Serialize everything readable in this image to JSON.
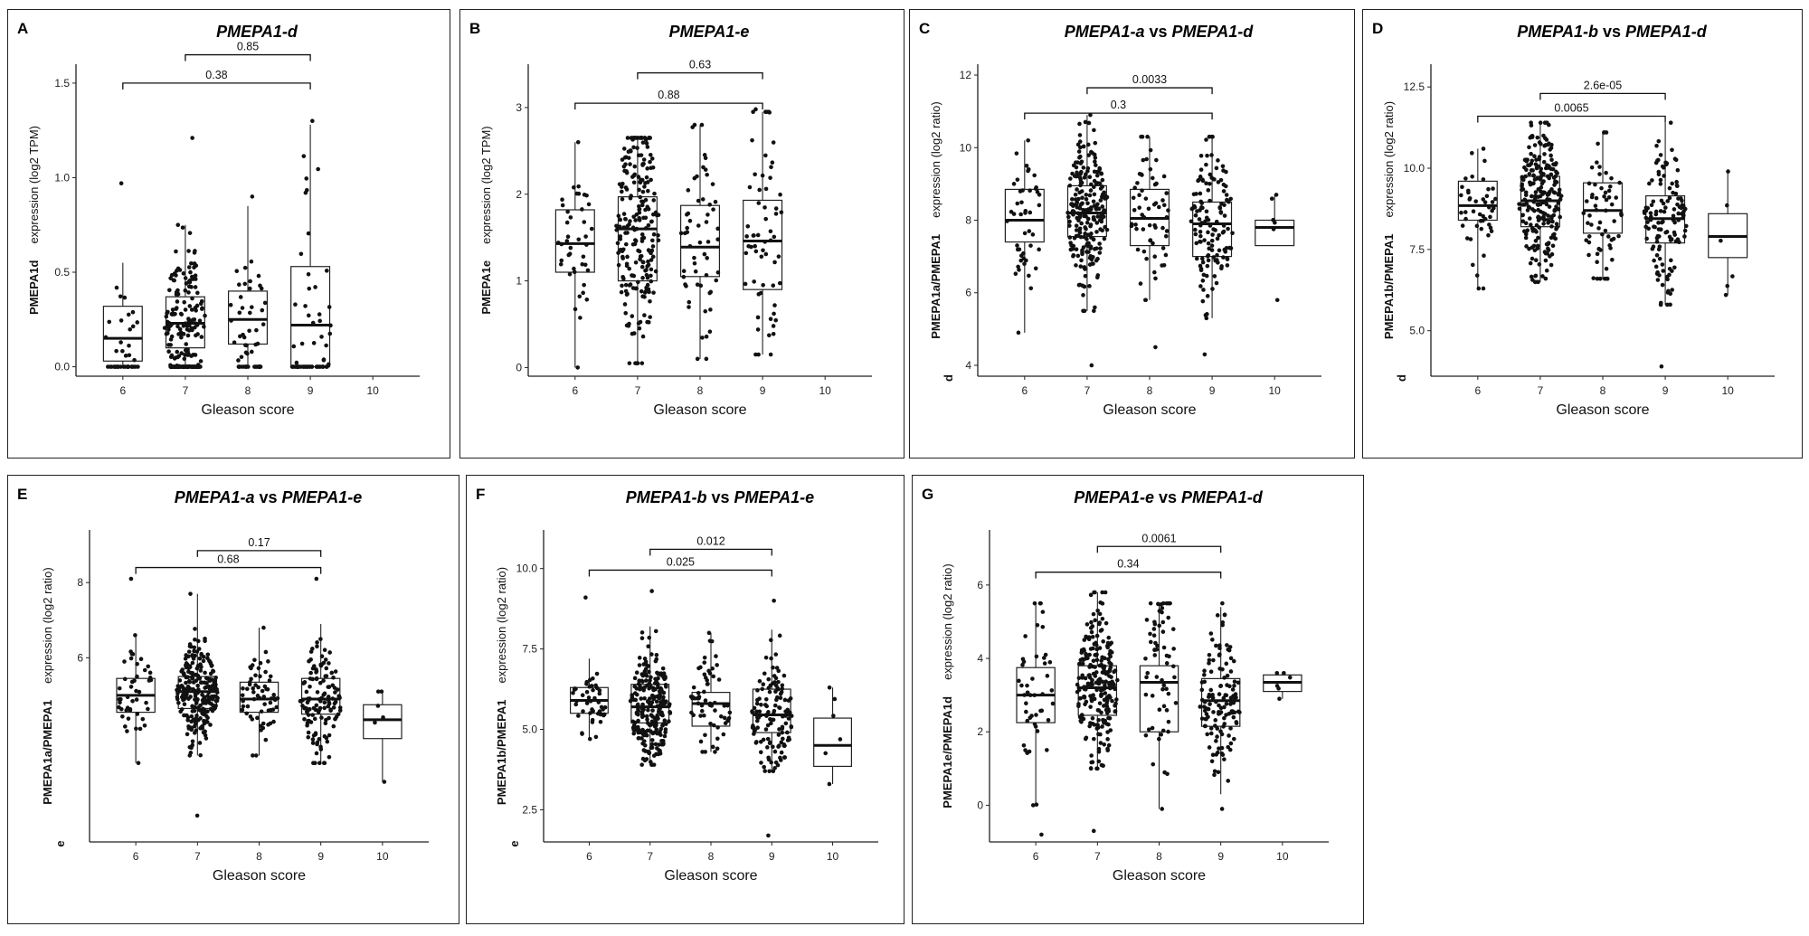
{
  "chart_data": [
    {
      "panel": "A",
      "type": "box",
      "title": "PMEPA1-d",
      "title_parts": [
        {
          "text": "PMEPA1-d",
          "italic": true
        }
      ],
      "ylabel_left": "PMEPA1d",
      "ylabel_right": "expression (log2 TPM)",
      "ylabel_sub": "",
      "xlabel": "Gleason score",
      "categories": [
        "6",
        "7",
        "8",
        "9",
        "10"
      ],
      "ylim": [
        -0.05,
        1.6
      ],
      "yticks": [
        0.0,
        0.5,
        1.0,
        1.5
      ],
      "yticklabels": [
        "0.0",
        "0.5",
        "1.0",
        "1.5"
      ],
      "boxes": [
        {
          "x": "6",
          "q1": 0.03,
          "median": 0.15,
          "q3": 0.32,
          "lo": 0.0,
          "hi": 0.55,
          "n": 40,
          "ptmin": 0.0,
          "ptmax": 0.97
        },
        {
          "x": "7",
          "q1": 0.1,
          "median": 0.23,
          "q3": 0.37,
          "lo": 0.0,
          "hi": 0.75,
          "n": 230,
          "ptmin": 0.0,
          "ptmax": 1.21
        },
        {
          "x": "8",
          "q1": 0.12,
          "median": 0.25,
          "q3": 0.4,
          "lo": 0.0,
          "hi": 0.85,
          "n": 55,
          "ptmin": 0.0,
          "ptmax": 0.9
        },
        {
          "x": "9",
          "q1": 0.0,
          "median": 0.22,
          "q3": 0.53,
          "lo": 0.0,
          "hi": 1.28,
          "n": 60,
          "ptmin": 0.0,
          "ptmax": 1.3
        }
      ],
      "pvalues": [
        {
          "from": "7",
          "to": "9",
          "y": 1.65,
          "label": "0.85"
        },
        {
          "from": "6",
          "to": "9",
          "y": 1.5,
          "label": "0.38"
        }
      ]
    },
    {
      "panel": "B",
      "type": "box",
      "title": "PMEPA1-e",
      "title_parts": [
        {
          "text": "PMEPA1-e",
          "italic": true
        }
      ],
      "ylabel_left": "PMEPA1e",
      "ylabel_right": "expression (log2 TPM)",
      "ylabel_sub": "",
      "xlabel": "Gleason score",
      "categories": [
        "6",
        "7",
        "8",
        "9",
        "10"
      ],
      "ylim": [
        -0.1,
        3.5
      ],
      "yticks": [
        0,
        1,
        2,
        3
      ],
      "yticklabels": [
        "0",
        "1",
        "2",
        "3"
      ],
      "boxes": [
        {
          "x": "6",
          "q1": 1.1,
          "median": 1.43,
          "q3": 1.82,
          "lo": 0.0,
          "hi": 2.6,
          "n": 40,
          "ptmin": 0.0,
          "ptmax": 2.6
        },
        {
          "x": "7",
          "q1": 1.0,
          "median": 1.6,
          "q3": 1.97,
          "lo": 0.05,
          "hi": 2.65,
          "n": 230,
          "ptmin": 0.05,
          "ptmax": 2.65
        },
        {
          "x": "8",
          "q1": 1.05,
          "median": 1.39,
          "q3": 1.87,
          "lo": 0.1,
          "hi": 2.8,
          "n": 55,
          "ptmin": 0.1,
          "ptmax": 2.8
        },
        {
          "x": "9",
          "q1": 0.9,
          "median": 1.46,
          "q3": 1.93,
          "lo": 0.15,
          "hi": 2.95,
          "n": 60,
          "ptmin": 0.15,
          "ptmax": 2.98
        }
      ],
      "pvalues": [
        {
          "from": "7",
          "to": "9",
          "y": 3.4,
          "label": "0.63"
        },
        {
          "from": "6",
          "to": "9",
          "y": 3.05,
          "label": "0.88"
        }
      ]
    },
    {
      "panel": "C",
      "type": "box",
      "title": "PMEPA1-a vs PMEPA1-d",
      "title_parts": [
        {
          "text": "PMEPA1-a",
          "italic": true
        },
        {
          "text": " vs ",
          "italic": false
        },
        {
          "text": "PMEPA1-d",
          "italic": true
        }
      ],
      "ylabel_left": "PMEPA1a/PMEPA1",
      "ylabel_right": "expression (log2 ratio)",
      "ylabel_sub": "d",
      "xlabel": "Gleason score",
      "categories": [
        "6",
        "7",
        "8",
        "9",
        "10"
      ],
      "ylim": [
        3.7,
        12.3
      ],
      "yticks": [
        4,
        6,
        8,
        10,
        12
      ],
      "yticklabels": [
        "4",
        "6",
        "8",
        "10",
        "12"
      ],
      "boxes": [
        {
          "x": "6",
          "q1": 7.4,
          "median": 8.0,
          "q3": 8.85,
          "lo": 4.9,
          "hi": 10.2,
          "n": 45,
          "ptmin": 4.9,
          "ptmax": 10.2
        },
        {
          "x": "7",
          "q1": 7.55,
          "median": 8.2,
          "q3": 8.95,
          "lo": 5.5,
          "hi": 10.9,
          "n": 240,
          "ptmin": 4.0,
          "ptmax": 10.9
        },
        {
          "x": "8",
          "q1": 7.3,
          "median": 8.05,
          "q3": 8.85,
          "lo": 5.8,
          "hi": 10.3,
          "n": 60,
          "ptmin": 4.5,
          "ptmax": 10.3
        },
        {
          "x": "9",
          "q1": 7.0,
          "median": 7.9,
          "q3": 8.5,
          "lo": 5.3,
          "hi": 10.3,
          "n": 130,
          "ptmin": 4.3,
          "ptmax": 10.3
        },
        {
          "x": "10",
          "q1": 7.3,
          "median": 7.8,
          "q3": 8.0,
          "lo": 7.3,
          "hi": 8.7,
          "n": 4,
          "ptmin": 5.8,
          "ptmax": 8.7
        }
      ],
      "pvalues": [
        {
          "from": "7",
          "to": "9",
          "y": 11.65,
          "label": "0.0033"
        },
        {
          "from": "6",
          "to": "9",
          "y": 10.95,
          "label": "0.3"
        }
      ]
    },
    {
      "panel": "D",
      "type": "box",
      "title": "PMEPA1-b vs PMEPA1-d",
      "title_parts": [
        {
          "text": "PMEPA1-b",
          "italic": true
        },
        {
          "text": " vs ",
          "italic": false
        },
        {
          "text": "PMEPA1-d",
          "italic": true
        }
      ],
      "ylabel_left": "PMEPA1b/PMEPA1",
      "ylabel_right": "expression (log2 ratio)",
      "ylabel_sub": "d",
      "xlabel": "Gleason score",
      "categories": [
        "6",
        "7",
        "8",
        "9",
        "10"
      ],
      "ylim": [
        3.6,
        13.2
      ],
      "yticks": [
        5.0,
        7.5,
        10.0,
        12.5
      ],
      "yticklabels": [
        "5.0",
        "7.5",
        "10.0",
        "12.5"
      ],
      "boxes": [
        {
          "x": "6",
          "q1": 8.4,
          "median": 8.85,
          "q3": 9.6,
          "lo": 6.3,
          "hi": 10.6,
          "n": 45,
          "ptmin": 6.3,
          "ptmax": 10.6
        },
        {
          "x": "7",
          "q1": 8.2,
          "median": 9.0,
          "q3": 9.75,
          "lo": 6.5,
          "hi": 11.4,
          "n": 240,
          "ptmin": 6.5,
          "ptmax": 11.4
        },
        {
          "x": "8",
          "q1": 8.0,
          "median": 8.7,
          "q3": 9.55,
          "lo": 6.6,
          "hi": 11.1,
          "n": 60,
          "ptmin": 6.6,
          "ptmax": 11.1
        },
        {
          "x": "9",
          "q1": 7.7,
          "median": 8.45,
          "q3": 9.15,
          "lo": 5.8,
          "hi": 11.4,
          "n": 130,
          "ptmin": 3.9,
          "ptmax": 11.4
        },
        {
          "x": "10",
          "q1": 7.25,
          "median": 7.9,
          "q3": 8.6,
          "lo": 6.1,
          "hi": 9.9,
          "n": 4,
          "ptmin": 6.1,
          "ptmax": 9.9
        }
      ],
      "pvalues": [
        {
          "from": "7",
          "to": "9",
          "y": 12.3,
          "label": "2.6e-05"
        },
        {
          "from": "6",
          "to": "9",
          "y": 11.6,
          "label": "0.0065"
        }
      ]
    },
    {
      "panel": "E",
      "type": "box",
      "title": "PMEPA1-a vs PMEPA1-e",
      "title_parts": [
        {
          "text": "PMEPA1-a",
          "italic": true
        },
        {
          "text": " vs ",
          "italic": false
        },
        {
          "text": "PMEPA1-e",
          "italic": true
        }
      ],
      "ylabel_left": "PMEPA1a/PMEPA1",
      "ylabel_right": "expression (log2 ratio)",
      "ylabel_sub": "e",
      "xlabel": "Gleason score",
      "categories": [
        "6",
        "7",
        "8",
        "9",
        "10"
      ],
      "ylim": [
        1.1,
        9.4
      ],
      "yticks": [
        6,
        8
      ],
      "yticklabels": [
        "6",
        "8"
      ],
      "boxes": [
        {
          "x": "6",
          "q1": 4.55,
          "median": 5.0,
          "q3": 5.45,
          "lo": 3.2,
          "hi": 6.6,
          "n": 45,
          "ptmin": 3.2,
          "ptmax": 8.1
        },
        {
          "x": "7",
          "q1": 4.65,
          "median": 5.1,
          "q3": 5.5,
          "lo": 3.4,
          "hi": 7.7,
          "n": 240,
          "ptmin": 1.8,
          "ptmax": 7.7
        },
        {
          "x": "8",
          "q1": 4.55,
          "median": 4.9,
          "q3": 5.35,
          "lo": 3.4,
          "hi": 6.8,
          "n": 60,
          "ptmin": 3.4,
          "ptmax": 6.8
        },
        {
          "x": "9",
          "q1": 4.5,
          "median": 4.9,
          "q3": 5.45,
          "lo": 3.2,
          "hi": 6.9,
          "n": 130,
          "ptmin": 3.2,
          "ptmax": 8.1
        },
        {
          "x": "10",
          "q1": 3.85,
          "median": 4.35,
          "q3": 4.75,
          "lo": 2.7,
          "hi": 5.1,
          "n": 4,
          "ptmin": 2.7,
          "ptmax": 5.1
        }
      ],
      "pvalues": [
        {
          "from": "7",
          "to": "9",
          "y": 8.85,
          "label": "0.17"
        },
        {
          "from": "6",
          "to": "9",
          "y": 8.4,
          "label": "0.68"
        }
      ]
    },
    {
      "panel": "F",
      "type": "box",
      "title": "PMEPA1-b vs PMEPA1-e",
      "title_parts": [
        {
          "text": "PMEPA1-b",
          "italic": true
        },
        {
          "text": " vs ",
          "italic": false
        },
        {
          "text": "PMEPA1-e",
          "italic": true
        }
      ],
      "ylabel_left": "PMEPA1b/PMEPA1",
      "ylabel_right": "expression (log2 ratio)",
      "ylabel_sub": "e",
      "xlabel": "Gleason score",
      "categories": [
        "6",
        "7",
        "8",
        "9",
        "10"
      ],
      "ylim": [
        1.5,
        11.2
      ],
      "yticks": [
        2.5,
        5.0,
        7.5,
        10.0
      ],
      "yticklabels": [
        "2.5",
        "5.0",
        "7.5",
        "10.0"
      ],
      "boxes": [
        {
          "x": "6",
          "q1": 5.5,
          "median": 5.9,
          "q3": 6.3,
          "lo": 4.7,
          "hi": 7.2,
          "n": 45,
          "ptmin": 4.7,
          "ptmax": 9.1
        },
        {
          "x": "7",
          "q1": 5.2,
          "median": 5.7,
          "q3": 6.4,
          "lo": 3.9,
          "hi": 8.2,
          "n": 240,
          "ptmin": 3.9,
          "ptmax": 9.3
        },
        {
          "x": "8",
          "q1": 5.1,
          "median": 5.8,
          "q3": 6.15,
          "lo": 4.3,
          "hi": 8.0,
          "n": 60,
          "ptmin": 4.3,
          "ptmax": 8.0
        },
        {
          "x": "9",
          "q1": 4.9,
          "median": 5.45,
          "q3": 6.25,
          "lo": 3.7,
          "hi": 8.1,
          "n": 130,
          "ptmin": 1.7,
          "ptmax": 9.0
        },
        {
          "x": "10",
          "q1": 3.85,
          "median": 4.5,
          "q3": 5.35,
          "lo": 3.3,
          "hi": 6.3,
          "n": 4,
          "ptmin": 3.3,
          "ptmax": 6.3
        }
      ],
      "pvalues": [
        {
          "from": "7",
          "to": "9",
          "y": 10.6,
          "label": "0.012"
        },
        {
          "from": "6",
          "to": "9",
          "y": 9.95,
          "label": "0.025"
        }
      ]
    },
    {
      "panel": "G",
      "type": "box",
      "title": "PMEPA1-e vs PMEPA1-d",
      "title_parts": [
        {
          "text": "PMEPA1-e",
          "italic": true
        },
        {
          "text": " vs ",
          "italic": false
        },
        {
          "text": "PMEPA1-d",
          "italic": true
        }
      ],
      "ylabel_left": "PMEPA1e/PMEPA1d",
      "ylabel_right": "expression (log2 ratio)",
      "ylabel_sub": "",
      "xlabel": "Gleason score",
      "categories": [
        "6",
        "7",
        "8",
        "9",
        "10"
      ],
      "ylim": [
        -1.0,
        7.5
      ],
      "yticks": [
        0,
        2,
        4,
        6
      ],
      "yticklabels": [
        "0",
        "2",
        "4",
        "6"
      ],
      "boxes": [
        {
          "x": "6",
          "q1": 2.25,
          "median": 3.0,
          "q3": 3.75,
          "lo": 0.0,
          "hi": 5.5,
          "n": 45,
          "ptmin": -0.8,
          "ptmax": 5.5
        },
        {
          "x": "7",
          "q1": 2.45,
          "median": 3.2,
          "q3": 3.8,
          "lo": 1.0,
          "hi": 5.8,
          "n": 240,
          "ptmin": -0.7,
          "ptmax": 5.8
        },
        {
          "x": "8",
          "q1": 2.0,
          "median": 3.35,
          "q3": 3.8,
          "lo": -0.1,
          "hi": 5.5,
          "n": 60,
          "ptmin": -0.1,
          "ptmax": 5.5
        },
        {
          "x": "9",
          "q1": 2.15,
          "median": 2.85,
          "q3": 3.45,
          "lo": 0.3,
          "hi": 5.4,
          "n": 130,
          "ptmin": -0.1,
          "ptmax": 5.5
        },
        {
          "x": "10",
          "q1": 3.1,
          "median": 3.35,
          "q3": 3.55,
          "lo": 2.9,
          "hi": 3.6,
          "n": 4,
          "ptmin": 2.9,
          "ptmax": 3.6
        }
      ],
      "pvalues": [
        {
          "from": "7",
          "to": "9",
          "y": 7.05,
          "label": "0.0061"
        },
        {
          "from": "6",
          "to": "9",
          "y": 6.35,
          "label": "0.34"
        }
      ]
    }
  ]
}
